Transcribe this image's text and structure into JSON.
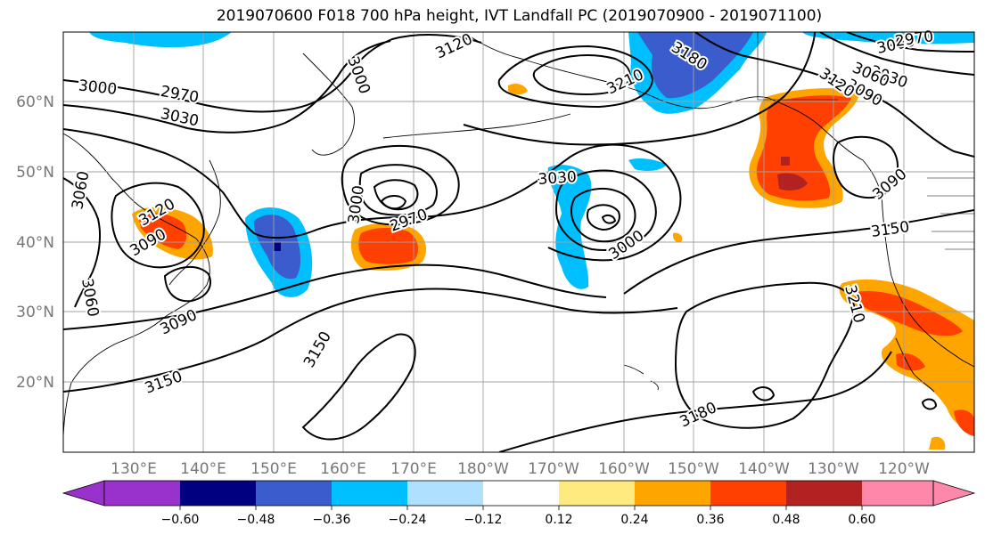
{
  "title": "2019070600 F018 700 hPa height, IVT Landfall PC (2019070900 - 2019071100)",
  "map": {
    "lat_labels": [
      "60°N",
      "50°N",
      "40°N",
      "30°N",
      "20°N"
    ],
    "lon_labels": [
      "130°E",
      "140°E",
      "150°E",
      "160°E",
      "170°E",
      "180°W",
      "170°W",
      "160°W",
      "150°W",
      "140°W",
      "130°W",
      "120°W"
    ],
    "gridlines": true
  },
  "contour_labels": [
    "3000",
    "2970",
    "3030",
    "3060",
    "3060",
    "3120",
    "3090",
    "3090",
    "3000",
    "3120",
    "3150",
    "3150",
    "3000",
    "2970",
    "3030",
    "3000",
    "3180",
    "3210",
    "3180",
    "3000",
    "3030",
    "3060",
    "3090",
    "3120",
    "2970",
    "3090",
    "3150",
    "3210",
    "3180"
  ],
  "colorbar": {
    "ticks": [
      "−0.60",
      "−0.48",
      "−0.36",
      "−0.24",
      "−0.12",
      "0.12",
      "0.24",
      "0.36",
      "0.48",
      "0.60"
    ],
    "colors": [
      "#9932cc",
      "#000080",
      "#3a5ccc",
      "#00bfff",
      "#b0e0ff",
      "#ffffff",
      "#ffea80",
      "#ffa500",
      "#ff4000",
      "#b22222",
      "#ff88aa"
    ],
    "extend": "both"
  }
}
